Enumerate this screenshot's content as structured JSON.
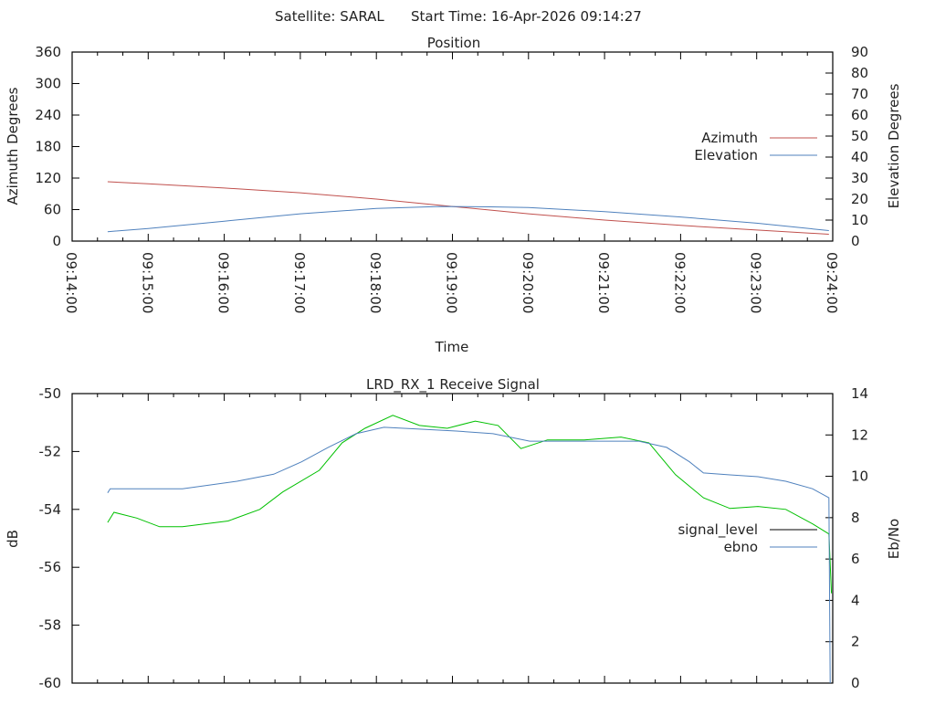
{
  "header": {
    "satellite": "Satellite: SARAL",
    "start_time": "Start Time: 16-Apr-2026 09:14:27"
  },
  "colors": {
    "azimuth": "#c0504d",
    "elevation": "#4f81bd",
    "signal_level": "#00c000",
    "signal_level_key": "#000000",
    "ebno": "#4f81bd"
  },
  "chart_data": [
    {
      "type": "line",
      "title": "Position",
      "xlabel": "Time",
      "ylabel": "Azimuth Degrees",
      "y2label": "Elevation Degrees",
      "xlim_seconds_after_09_14_00": [
        0,
        600
      ],
      "x_tick_labels": [
        "09:14:00",
        "09:15:00",
        "09:16:00",
        "09:17:00",
        "09:18:00",
        "09:19:00",
        "09:20:00",
        "09:21:00",
        "09:22:00",
        "09:23:00",
        "09:24:00"
      ],
      "ylim": [
        0,
        360
      ],
      "y_ticks": [
        "0",
        "60",
        "120",
        "180",
        "240",
        "300",
        "360"
      ],
      "y2lim": [
        0,
        90
      ],
      "y2_ticks": [
        "0",
        "10",
        "20",
        "30",
        "40",
        "50",
        "60",
        "70",
        "80",
        "90"
      ],
      "legend_position": "right",
      "series": [
        {
          "name": "Azimuth",
          "axis": "y",
          "x": [
            28,
            60,
            120,
            180,
            240,
            300,
            360,
            420,
            480,
            540,
            597
          ],
          "values": [
            113,
            109,
            101,
            92,
            80,
            66,
            52,
            40,
            30,
            21,
            13
          ]
        },
        {
          "name": "Elevation",
          "axis": "y2",
          "x": [
            28,
            60,
            120,
            180,
            240,
            290,
            330,
            360,
            420,
            480,
            540,
            597
          ],
          "values": [
            4.5,
            6,
            9.5,
            13,
            15.5,
            16.5,
            16.3,
            16,
            14,
            11.5,
            8.5,
            5
          ]
        }
      ]
    },
    {
      "type": "line",
      "title": "LRD_RX_1 Receive Signal",
      "ylabel": "dB",
      "y2label": "Eb/No",
      "xlim_seconds_after_09_14_00": [
        0,
        600
      ],
      "ylim": [
        -60,
        -50
      ],
      "y_ticks": [
        "-60",
        "-58",
        "-56",
        "-54",
        "-52",
        "-50"
      ],
      "y2lim": [
        0,
        14
      ],
      "y2_ticks": [
        "0",
        "2",
        "4",
        "6",
        "8",
        "10",
        "12",
        "14"
      ],
      "legend_position": "right",
      "series": [
        {
          "name": "signal_level",
          "axis": "y",
          "x": [
            28,
            33,
            51,
            69,
            87,
            123,
            148,
            166,
            195,
            213,
            231,
            253,
            274,
            296,
            318,
            336,
            354,
            375,
            404,
            433,
            455,
            476,
            498,
            519,
            541,
            563,
            584,
            597,
            599
          ],
          "values": [
            -54.45,
            -54.1,
            -54.3,
            -54.6,
            -54.6,
            -54.4,
            -54.0,
            -53.4,
            -52.65,
            -51.7,
            -51.2,
            -50.75,
            -51.1,
            -51.2,
            -50.95,
            -51.1,
            -51.9,
            -51.6,
            -51.6,
            -51.5,
            -51.7,
            -52.8,
            -53.6,
            -53.97,
            -53.9,
            -54.0,
            -54.5,
            -54.85,
            -56.9
          ]
        },
        {
          "name": "ebno",
          "axis": "y2",
          "x": [
            28,
            30,
            87,
            130,
            159,
            181,
            202,
            224,
            246,
            274,
            303,
            332,
            361,
            411,
            447,
            469,
            487,
            498,
            519,
            541,
            563,
            584,
            597,
            598
          ],
          "values": [
            9.2,
            9.4,
            9.4,
            9.76,
            10.1,
            10.7,
            11.4,
            12.06,
            12.37,
            12.28,
            12.19,
            12.06,
            11.7,
            11.7,
            11.7,
            11.4,
            10.7,
            10.16,
            10.07,
            9.98,
            9.76,
            9.4,
            8.96,
            0
          ]
        }
      ]
    }
  ]
}
